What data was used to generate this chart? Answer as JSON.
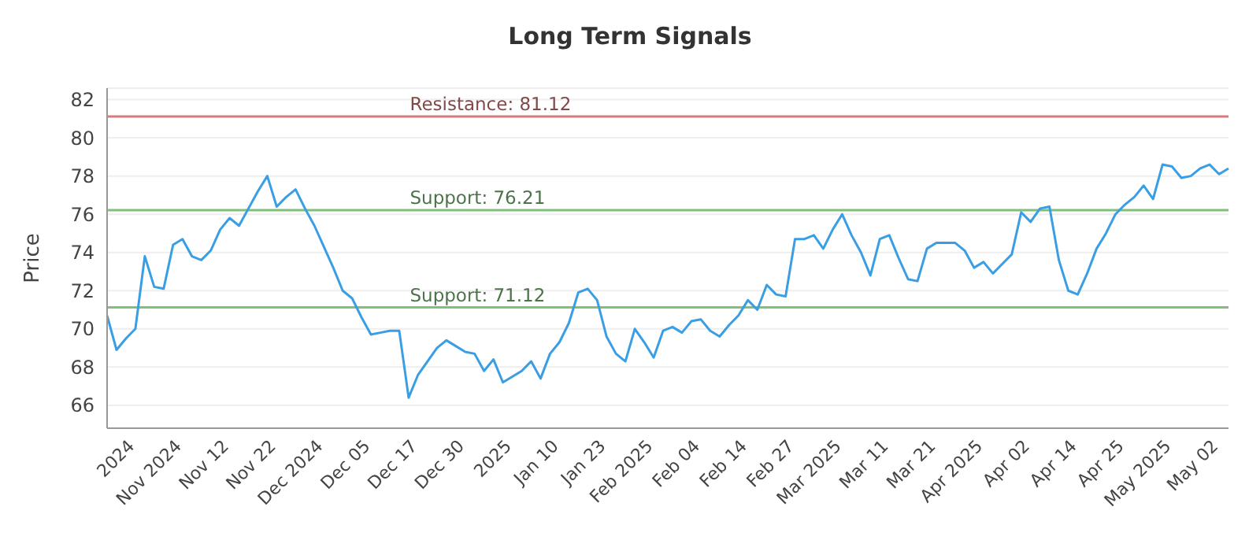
{
  "chart_data": {
    "type": "line",
    "title": "Long Term Signals",
    "ylabel": "Price",
    "categories": [
      null,
      null,
      null,
      "2024",
      null,
      null,
      null,
      null,
      "Nov 2024",
      null,
      null,
      null,
      null,
      "Nov 12",
      null,
      null,
      null,
      null,
      "Nov 22",
      null,
      null,
      null,
      null,
      "Dec 2024",
      null,
      null,
      null,
      null,
      "Dec 05",
      null,
      null,
      null,
      null,
      "Dec 17",
      null,
      null,
      null,
      null,
      "Dec 30",
      null,
      null,
      null,
      null,
      "2025",
      null,
      null,
      null,
      null,
      "Jan 10",
      null,
      null,
      null,
      null,
      "Jan 23",
      null,
      null,
      null,
      null,
      "Feb 2025",
      null,
      null,
      null,
      null,
      "Feb 04",
      null,
      null,
      null,
      null,
      "Feb 14",
      null,
      null,
      null,
      null,
      "Feb 27",
      null,
      null,
      null,
      null,
      "Mar 2025",
      null,
      null,
      null,
      null,
      "Mar 11",
      null,
      null,
      null,
      null,
      "Mar 21",
      null,
      null,
      null,
      null,
      "Apr 2025",
      null,
      null,
      null,
      null,
      "Apr 02",
      null,
      null,
      null,
      null,
      "Apr 14",
      null,
      null,
      null,
      null,
      "Apr 25",
      null,
      null,
      null,
      null,
      "May 2025",
      null,
      null,
      null,
      null,
      "May 02",
      null
    ],
    "series": [
      {
        "color": "#3a9ee4",
        "values": [
          70.7,
          68.9,
          69.5,
          70.0,
          73.8,
          72.2,
          72.1,
          74.4,
          74.7,
          73.8,
          73.6,
          74.1,
          75.2,
          75.8,
          75.4,
          76.3,
          77.2,
          78.0,
          76.4,
          76.9,
          77.3,
          76.3,
          75.4,
          74.3,
          73.2,
          72.0,
          71.6,
          70.6,
          69.7,
          69.8,
          69.9,
          69.9,
          66.4,
          67.6,
          68.3,
          69.0,
          69.4,
          69.1,
          68.8,
          68.7,
          67.8,
          68.4,
          67.2,
          67.5,
          67.8,
          68.3,
          67.4,
          68.7,
          69.3,
          70.3,
          71.9,
          72.1,
          71.5,
          69.6,
          68.7,
          68.3,
          70.0,
          69.3,
          68.5,
          69.9,
          70.1,
          69.8,
          70.4,
          70.5,
          69.9,
          69.6,
          70.2,
          70.7,
          71.5,
          71.0,
          72.3,
          71.8,
          71.7,
          74.7,
          74.7,
          74.9,
          74.2,
          75.2,
          76.0,
          74.9,
          74.0,
          72.8,
          74.7,
          74.9,
          73.7,
          72.6,
          72.5,
          74.2,
          74.5,
          74.5,
          74.5,
          74.1,
          73.2,
          73.5,
          72.9,
          73.4,
          73.9,
          76.1,
          75.6,
          76.3,
          76.4,
          73.6,
          72.0,
          71.8,
          72.9,
          74.2,
          75.0,
          76.0,
          76.5,
          76.9,
          77.5,
          76.8,
          78.6,
          78.5,
          77.9,
          78.0,
          78.4,
          78.6,
          78.1,
          78.4
        ]
      }
    ],
    "ylim": [
      64.8,
      82.6
    ],
    "yticks": [
      66,
      68,
      70,
      72,
      74,
      76,
      78,
      80,
      82
    ],
    "grid": "y",
    "marker": "none",
    "line_style": "solid",
    "ref_lines": [
      {
        "axis": "y",
        "value": 81.12,
        "label": "Resistance: 81.12",
        "color": "#d97a7a"
      },
      {
        "axis": "y",
        "value": 76.21,
        "label": "Support: 76.21",
        "color": "#80c07a"
      },
      {
        "axis": "y",
        "value": 71.12,
        "label": "Support: 71.12",
        "color": "#80c07a"
      }
    ]
  }
}
